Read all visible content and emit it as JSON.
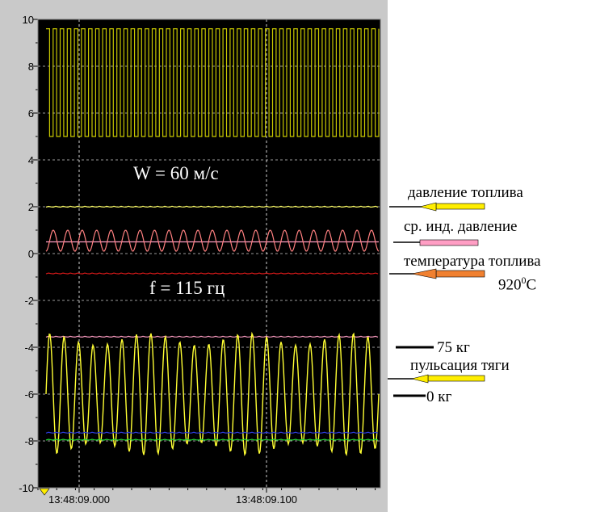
{
  "chart_data": {
    "type": "line",
    "ylim": [
      -10,
      10
    ],
    "yticks": [
      10,
      8,
      6,
      4,
      2,
      0,
      -2,
      -4,
      -6,
      -8,
      -10
    ],
    "ytick_labels": [
      "10",
      "8",
      "6",
      "4",
      "2",
      "0",
      "-2",
      "-4",
      "-6",
      "-8",
      "-10"
    ],
    "xticks": [
      {
        "label": "13:48:09.000"
      },
      {
        "label": "13:48:09.100"
      }
    ],
    "grid": true,
    "background": "#000000",
    "annotations": {
      "speed": "W = 60 м/с",
      "frequency": "f = 115 гц"
    },
    "series": [
      {
        "name": "square_wave",
        "color": "#c8c800",
        "shape": "square",
        "low": 5.0,
        "high": 9.6,
        "cycles": 47
      },
      {
        "name": "давление топлива",
        "color": "#ffff66",
        "shape": "flat",
        "level": 2.0
      },
      {
        "name": "ср. инд. давление",
        "color": "#ff8080",
        "shape": "pulse",
        "base": 0.1,
        "peak": 1.0,
        "cycles": 23,
        "flat_level": 0.5,
        "flat_color": "#ff9ec4"
      },
      {
        "name": "температура топлива",
        "color": "#d81a1a",
        "shape": "flat",
        "level": -0.85
      },
      {
        "name": "75 кг",
        "color": "#ff9ec4",
        "shape": "flat",
        "level": -3.55
      },
      {
        "name": "пульсация тяги",
        "color": "#ffff33",
        "shape": "sine",
        "center": -6.0,
        "amplitude": 2.6,
        "cycles": 23
      },
      {
        "name": "blue_line",
        "color": "#2b3bd8",
        "shape": "flat",
        "level": -7.65
      },
      {
        "name": "0 кг",
        "color": "#22dd33",
        "shape": "flat",
        "level": -7.95
      }
    ]
  },
  "labels": {
    "fuel_pressure": "давление топлива",
    "mean_pressure": "ср. инд. давление",
    "fuel_temp": "температура топлива",
    "fuel_temp_value": "920",
    "fuel_temp_sup": "0",
    "fuel_temp_unit": "C",
    "load_75": "75 кг",
    "thrust_pulsation": "пульсация тяги",
    "load_0": "0 кг"
  },
  "colors": {
    "yellow_marker": "#ffee00",
    "pink_marker": "#ff9ec4",
    "orange_marker": "#f08030"
  }
}
